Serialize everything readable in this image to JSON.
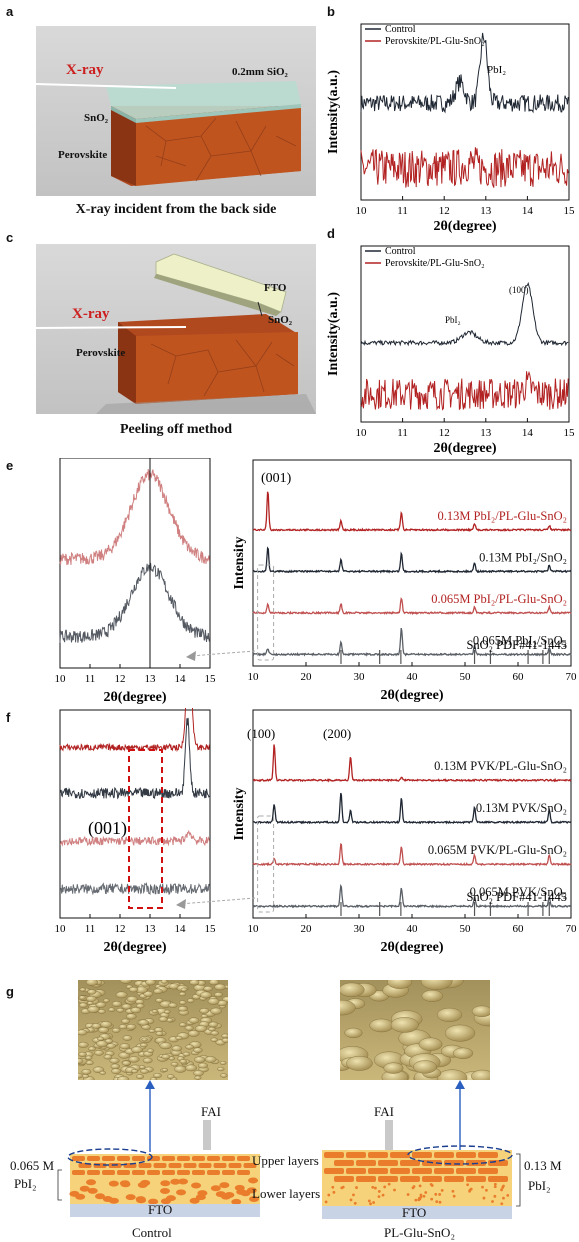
{
  "panel_a": {
    "letter": "a",
    "labels": {
      "xray": "X-ray",
      "sio2": "0.2mm SiO₂",
      "sno2": "SnO₂",
      "perovskite": "Perovskite"
    },
    "caption": "X-ray incident from the back side"
  },
  "panel_c": {
    "letter": "c",
    "labels": {
      "xray": "X-ray",
      "fto": "FTO",
      "sno2": "SnO₂",
      "perovskite": "Perovskite"
    },
    "caption": "Peeling off method"
  },
  "panel_b": {
    "letter": "b",
    "peak_label": "PbI₂"
  },
  "panel_d": {
    "letter": "d",
    "peak_label_1": "PbI₂",
    "peak_label_2": "(100)"
  },
  "panel_e": {
    "letter": "e",
    "peak_label": "(001)",
    "vertical_line_at": 13.0
  },
  "panel_f": {
    "letter": "f",
    "peak_label_1": "(100)",
    "peak_label_2": "(200)",
    "inset_label": "(001)"
  },
  "panel_g": {
    "letter": "g",
    "left": {
      "fai": "FAI",
      "upper": "Upper layers",
      "lower": "Lower layers",
      "fto": "FTO",
      "conc": "0.065 M",
      "pbi2": "PbI₂",
      "caption": "Control"
    },
    "right": {
      "fai": "FAI",
      "fto": "FTO",
      "conc": "0.13 M",
      "pbi2": "PbI₂",
      "caption": "PL-Glu-SnO₂"
    }
  },
  "chart_data": [
    {
      "id": "b",
      "type": "line",
      "xlabel": "2θ(degree)",
      "ylabel": "Intensity(a.u.)",
      "xlim": [
        10,
        15
      ],
      "xticks": [
        10,
        11,
        12,
        13,
        14,
        15
      ],
      "legend": [
        "Control",
        "Perovskite/PL-Glu-SnO₂"
      ],
      "legend_position": "top-left",
      "series": [
        {
          "name": "Control",
          "color": "#1f2733",
          "baseline": 0.55,
          "noise": 0.05,
          "peaks": [
            {
              "x": 12.38,
              "h": 0.12,
              "w": 0.15
            },
            {
              "x": 12.95,
              "h": 0.38,
              "w": 0.12
            }
          ]
        },
        {
          "name": "Perovskite/PL-Glu-SnO₂",
          "color": "#b22222",
          "baseline": 0.18,
          "noise": 0.11,
          "peaks": [
            {
              "x": 12.6,
              "h": 0.03,
              "w": 0.2
            }
          ]
        }
      ]
    },
    {
      "id": "d",
      "type": "line",
      "xlabel": "2θ(degree)",
      "ylabel": "Intensity(a.u.)",
      "xlim": [
        10,
        15
      ],
      "xticks": [
        10,
        11,
        12,
        13,
        14,
        15
      ],
      "legend": [
        "Control",
        "Perovskite/PL-Glu-SnO₂"
      ],
      "legend_position": "top-left",
      "series": [
        {
          "name": "Control",
          "color": "#1f2733",
          "baseline": 0.45,
          "noise": 0.012,
          "peaks": [
            {
              "x": 12.6,
              "h": 0.06,
              "w": 0.25
            },
            {
              "x": 14.0,
              "h": 0.33,
              "w": 0.18
            }
          ]
        },
        {
          "name": "Perovskite/PL-Glu-SnO₂",
          "color": "#b22222",
          "baseline": 0.16,
          "noise": 0.09,
          "peaks": [
            {
              "x": 14.0,
              "h": 0.05,
              "w": 0.15
            }
          ]
        }
      ]
    },
    {
      "id": "e_inset",
      "type": "line",
      "xlabel": "2θ(degree)",
      "xlim": [
        10,
        15
      ],
      "xticks": [
        10,
        11,
        12,
        13,
        14,
        15
      ],
      "series": [
        {
          "name": "",
          "color": "#d08080",
          "baseline": 0.52,
          "noise": 0.03,
          "peaks": [
            {
              "x": 13.0,
              "h": 0.4,
              "w": 0.9
            }
          ]
        },
        {
          "name": "",
          "color": "#555a62",
          "baseline": 0.15,
          "noise": 0.03,
          "peaks": [
            {
              "x": 13.0,
              "h": 0.33,
              "w": 0.9
            }
          ]
        }
      ]
    },
    {
      "id": "e_main",
      "type": "line",
      "xlabel": "2θ(degree)",
      "ylabel": "Intensity",
      "xlim": [
        10,
        70
      ],
      "xticks": [
        10,
        20,
        30,
        40,
        50,
        60,
        70
      ],
      "series": [
        {
          "name": "0.13M PbI₂/PL-Glu-SnO₂",
          "color": "#b22222",
          "label_color": "#b22222",
          "peaks": [
            {
              "x": 12.8,
              "h": 0.13
            },
            {
              "x": 26.6,
              "h": 0.03
            },
            {
              "x": 38.0,
              "h": 0.06
            },
            {
              "x": 51.8,
              "h": 0.02
            },
            {
              "x": 65.9,
              "h": 0.015
            }
          ]
        },
        {
          "name": "0.13M PbI₂/SnO₂",
          "color": "#1f2733",
          "label_color": "#111111",
          "peaks": [
            {
              "x": 12.8,
              "h": 0.08
            },
            {
              "x": 26.6,
              "h": 0.04
            },
            {
              "x": 38.0,
              "h": 0.06
            },
            {
              "x": 51.8,
              "h": 0.03
            },
            {
              "x": 65.9,
              "h": 0.02
            }
          ]
        },
        {
          "name": "0.065M PbI₂/PL-Glu-SnO₂",
          "color": "#c05050",
          "label_color": "#b22222",
          "peaks": [
            {
              "x": 12.8,
              "h": 0.03
            },
            {
              "x": 26.6,
              "h": 0.03
            },
            {
              "x": 38.0,
              "h": 0.05
            },
            {
              "x": 51.8,
              "h": 0.02
            },
            {
              "x": 65.9,
              "h": 0.02
            }
          ]
        },
        {
          "name": "0.065M PbI₂/SnO₂",
          "color": "#5a5f66",
          "label_color": "#111111",
          "peaks": [
            {
              "x": 12.8,
              "h": 0.02
            },
            {
              "x": 26.6,
              "h": 0.04
            },
            {
              "x": 38.0,
              "h": 0.09
            },
            {
              "x": 51.8,
              "h": 0.03
            },
            {
              "x": 65.9,
              "h": 0.02
            }
          ]
        }
      ],
      "reference": {
        "name": "SnO₂ PDF#41-1445",
        "sticks": [
          26.6,
          33.9,
          37.9,
          51.8,
          54.8,
          61.9,
          64.7,
          65.9
        ]
      }
    },
    {
      "id": "f_inset",
      "type": "line",
      "xlabel": "2θ(degree)",
      "xlim": [
        10,
        15
      ],
      "xticks": [
        10,
        11,
        12,
        13,
        14,
        15
      ],
      "series": [
        {
          "name": "",
          "color": "#b22222",
          "baseline": 0.82,
          "noise": 0.015,
          "peaks": [
            {
              "x": 14.3,
              "h": 0.5,
              "w": 0.12
            }
          ]
        },
        {
          "name": "",
          "color": "#333a44",
          "baseline": 0.6,
          "noise": 0.025,
          "peaks": [
            {
              "x": 14.25,
              "h": 0.35,
              "w": 0.1
            }
          ]
        },
        {
          "name": "",
          "color": "#d08080",
          "baseline": 0.37,
          "noise": 0.02,
          "peaks": [
            {
              "x": 14.3,
              "h": 0.04,
              "w": 0.15
            }
          ]
        },
        {
          "name": "",
          "color": "#666b72",
          "baseline": 0.14,
          "noise": 0.025,
          "peaks": []
        }
      ]
    },
    {
      "id": "f_main",
      "type": "line",
      "xlabel": "2θ(degree)",
      "ylabel": "Intensity",
      "xlim": [
        10,
        70
      ],
      "xticks": [
        10,
        20,
        30,
        40,
        50,
        60,
        70
      ],
      "series": [
        {
          "name": "0.13M PVK/PL-Glu-SnO₂",
          "color": "#b22222",
          "label_color": "#111111",
          "peaks": [
            {
              "x": 14.0,
              "h": 0.12
            },
            {
              "x": 28.4,
              "h": 0.08
            },
            {
              "x": 38.0,
              "h": 0.01
            }
          ]
        },
        {
          "name": "0.13M PVK/SnO₂",
          "color": "#1f2733",
          "label_color": "#111111",
          "peaks": [
            {
              "x": 14.0,
              "h": 0.06
            },
            {
              "x": 26.6,
              "h": 0.1
            },
            {
              "x": 28.4,
              "h": 0.04
            },
            {
              "x": 38.0,
              "h": 0.08
            },
            {
              "x": 51.8,
              "h": 0.05
            },
            {
              "x": 65.9,
              "h": 0.04
            }
          ]
        },
        {
          "name": "0.065M PVK/PL-Glu-SnO₂",
          "color": "#c05050",
          "label_color": "#111111",
          "peaks": [
            {
              "x": 14.0,
              "h": 0.02
            },
            {
              "x": 26.6,
              "h": 0.07
            },
            {
              "x": 38.0,
              "h": 0.06
            },
            {
              "x": 51.8,
              "h": 0.03
            },
            {
              "x": 65.9,
              "h": 0.03
            }
          ]
        },
        {
          "name": "0.065M PVK/SnO₂",
          "color": "#5a5f66",
          "label_color": "#111111",
          "peaks": [
            {
              "x": 26.6,
              "h": 0.07
            },
            {
              "x": 38.0,
              "h": 0.06
            },
            {
              "x": 51.8,
              "h": 0.03
            },
            {
              "x": 65.9,
              "h": 0.03
            }
          ]
        }
      ],
      "reference": {
        "name": "SnO₂ PDF#41-1445",
        "sticks": [
          26.6,
          33.9,
          37.9,
          51.8,
          54.8,
          61.9,
          64.7,
          65.9
        ]
      }
    }
  ]
}
